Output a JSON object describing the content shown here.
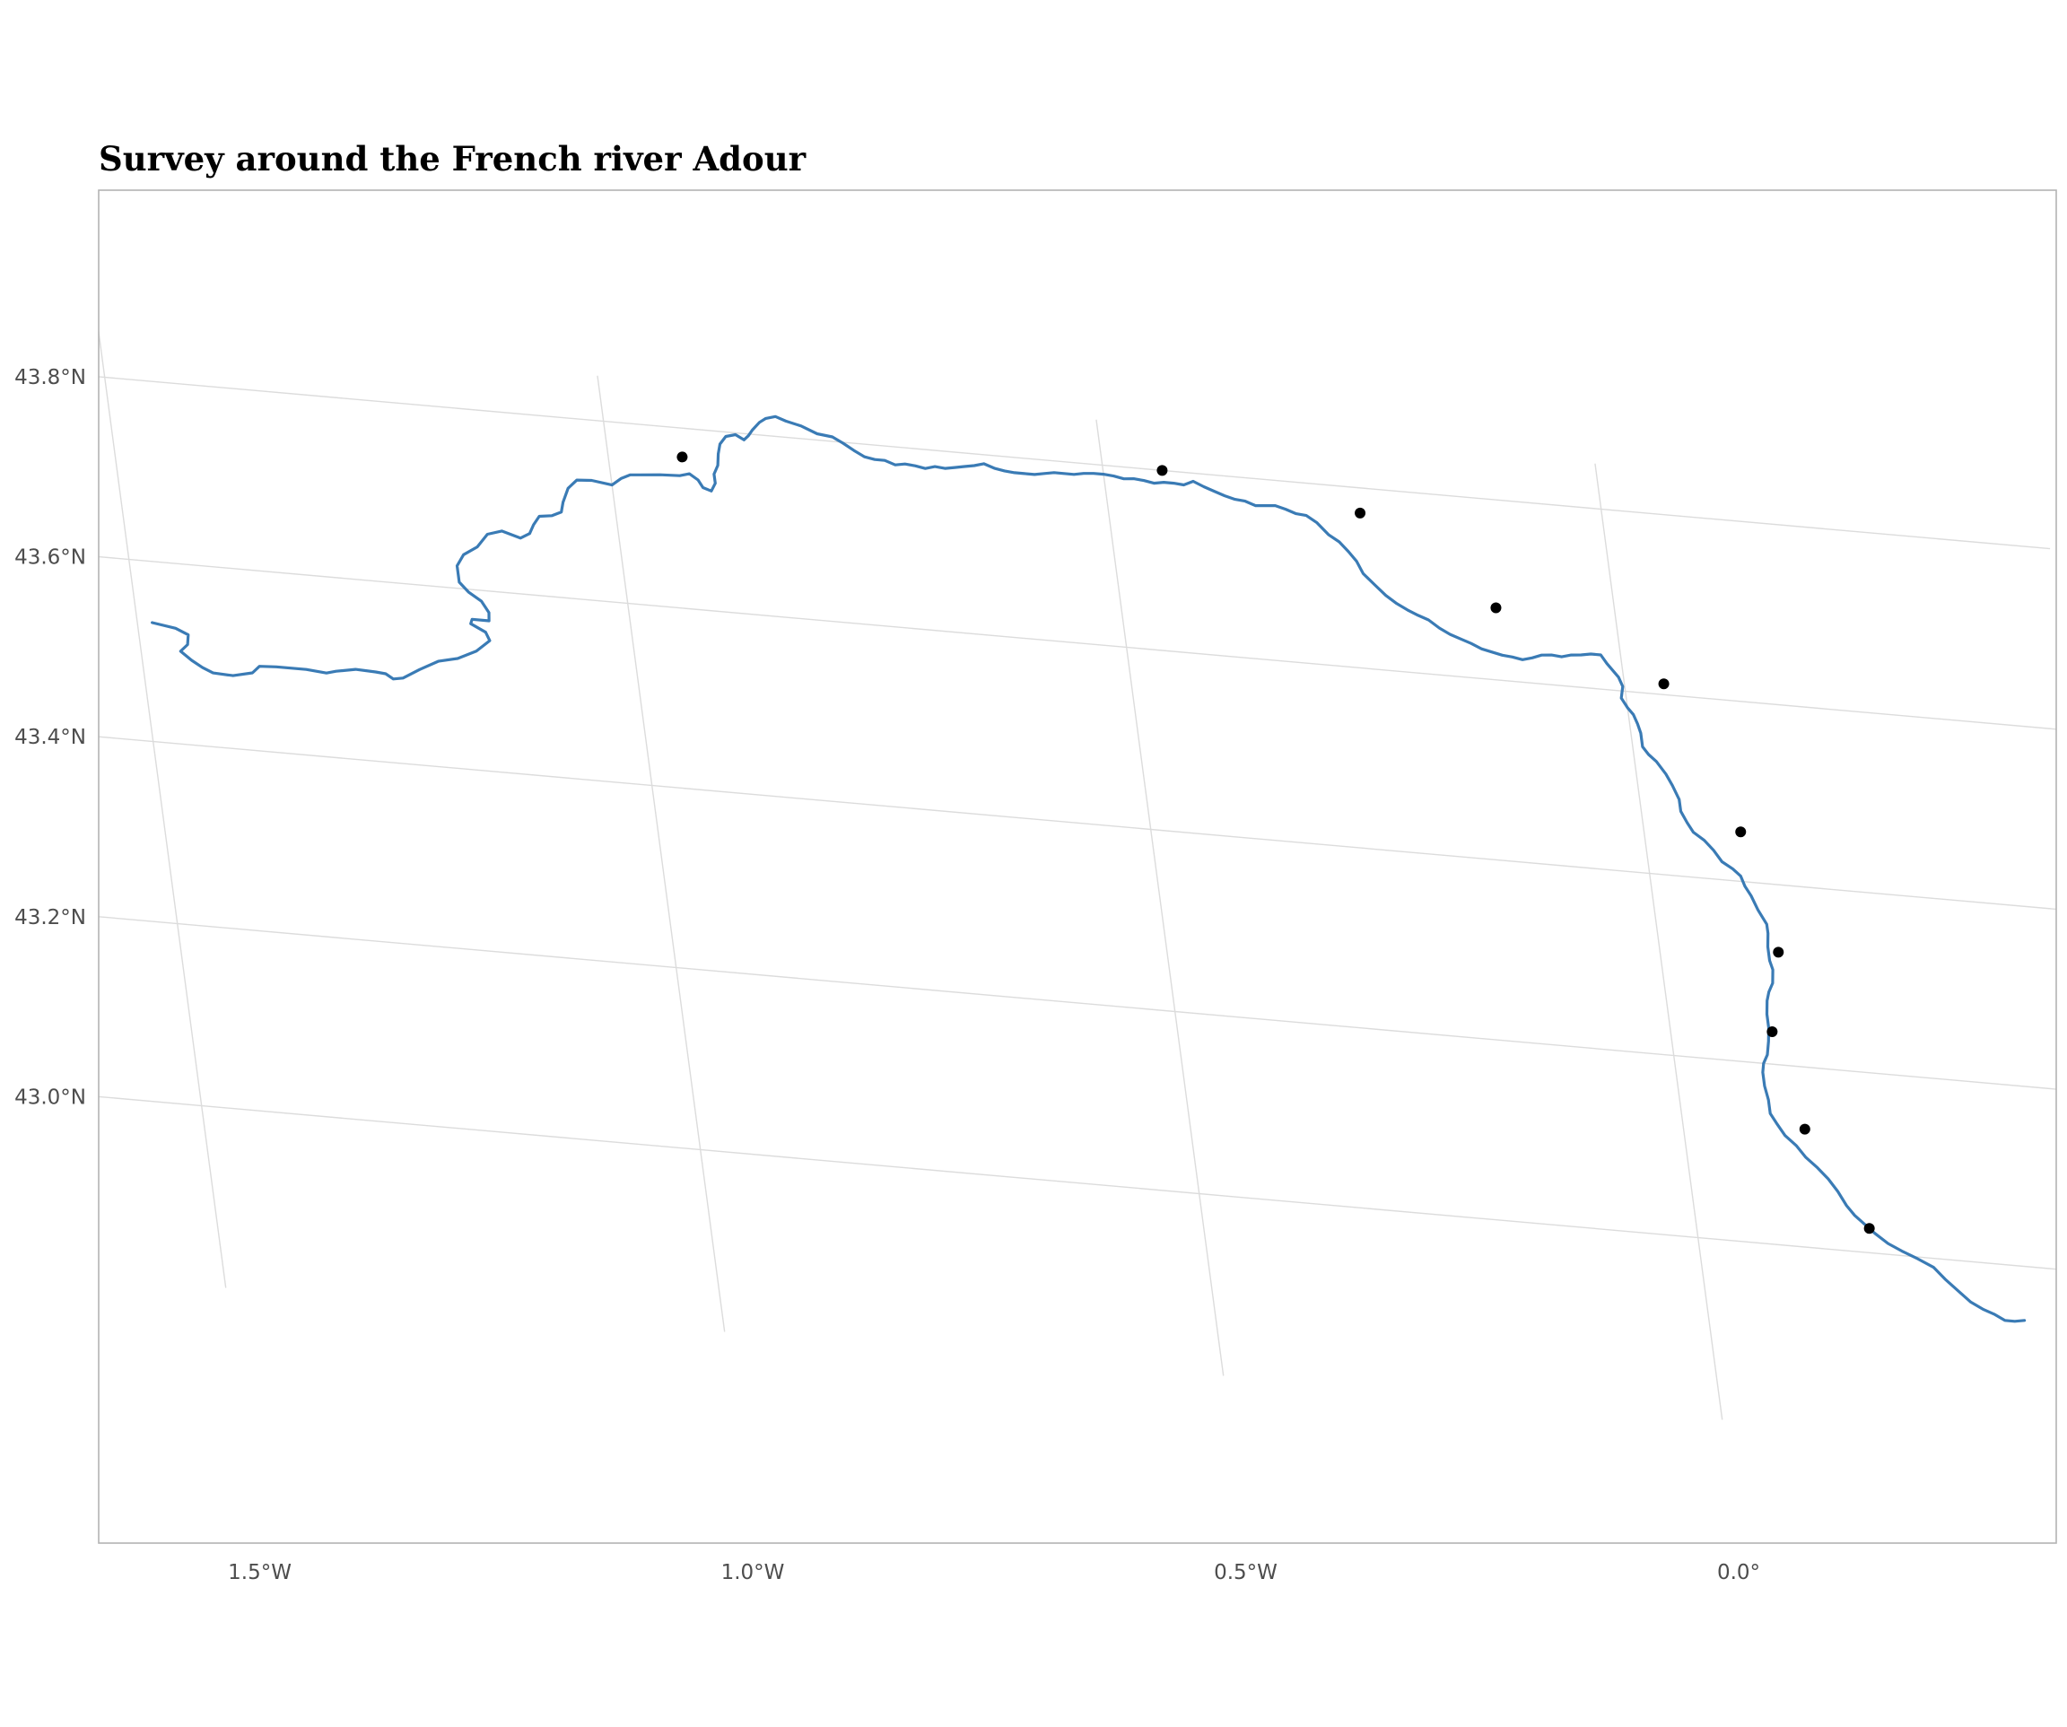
{
  "title": "Survey around the French river Adour",
  "colors": {
    "river": "#3a7bb5",
    "points": "#000000",
    "grid": "#dcdcdc",
    "axis_text": "#4d4d4d"
  },
  "axes": {
    "longitude_ticks": [
      {
        "value": -1.5,
        "label": "1.5°W"
      },
      {
        "value": -1.0,
        "label": "1.0°W"
      },
      {
        "value": -0.5,
        "label": "0.5°W"
      },
      {
        "value": 0.0,
        "label": "0.0°"
      }
    ],
    "latitude_ticks": [
      {
        "value": 43.8,
        "label": "43.8°N"
      },
      {
        "value": 43.6,
        "label": "43.6°N"
      },
      {
        "value": 43.4,
        "label": "43.4°N"
      },
      {
        "value": 43.2,
        "label": "43.2°N"
      },
      {
        "value": 43.0,
        "label": "43.0°N"
      }
    ]
  },
  "river": {
    "name": "Adour",
    "coordinates": [
      [
        -1.485,
        43.532
      ],
      [
        -1.462,
        43.528
      ],
      [
        -1.45,
        43.522
      ],
      [
        -1.452,
        43.511
      ],
      [
        -1.46,
        43.503
      ],
      [
        -1.45,
        43.494
      ],
      [
        -1.44,
        43.487
      ],
      [
        -1.43,
        43.482
      ],
      [
        -1.41,
        43.481
      ],
      [
        -1.39,
        43.486
      ],
      [
        -1.382,
        43.494
      ],
      [
        -1.365,
        43.495
      ],
      [
        -1.335,
        43.495
      ],
      [
        -1.315,
        43.493
      ],
      [
        -1.305,
        43.496
      ],
      [
        -1.285,
        43.5
      ],
      [
        -1.265,
        43.499
      ],
      [
        -1.255,
        43.498
      ],
      [
        -1.248,
        43.493
      ],
      [
        -1.238,
        43.495
      ],
      [
        -1.22,
        43.506
      ],
      [
        -1.2,
        43.517
      ],
      [
        -1.18,
        43.522
      ],
      [
        -1.16,
        43.532
      ],
      [
        -1.145,
        43.545
      ],
      [
        -1.148,
        43.554
      ],
      [
        -1.162,
        43.562
      ],
      [
        -1.16,
        43.567
      ],
      [
        -1.143,
        43.567
      ],
      [
        -1.142,
        43.576
      ],
      [
        -1.148,
        43.588
      ],
      [
        -1.16,
        43.597
      ],
      [
        -1.168,
        43.607
      ],
      [
        -1.168,
        43.625
      ],
      [
        -1.16,
        43.638
      ],
      [
        -1.145,
        43.648
      ],
      [
        -1.133,
        43.663
      ],
      [
        -1.118,
        43.668
      ],
      [
        -1.1,
        43.662
      ],
      [
        -1.09,
        43.668
      ],
      [
        -1.085,
        43.678
      ],
      [
        -1.078,
        43.688
      ],
      [
        -1.065,
        43.69
      ],
      [
        -1.055,
        43.695
      ],
      [
        -1.052,
        43.706
      ],
      [
        -1.045,
        43.722
      ],
      [
        -1.035,
        43.732
      ],
      [
        -1.02,
        43.733
      ],
      [
        -1.0,
        43.73
      ],
      [
        -0.99,
        43.738
      ],
      [
        -0.98,
        43.743
      ],
      [
        -0.97,
        43.744
      ],
      [
        -0.95,
        43.746
      ],
      [
        -0.93,
        43.747
      ],
      [
        -0.92,
        43.75
      ],
      [
        -0.912,
        43.744
      ],
      [
        -0.908,
        43.736
      ],
      [
        -0.9,
        43.733
      ],
      [
        -0.895,
        43.742
      ],
      [
        -0.895,
        43.752
      ],
      [
        -0.89,
        43.762
      ],
      [
        -0.888,
        43.775
      ],
      [
        -0.885,
        43.786
      ],
      [
        -0.878,
        43.795
      ],
      [
        -0.868,
        43.798
      ],
      [
        -0.86,
        43.793
      ],
      [
        -0.855,
        43.798
      ],
      [
        -0.85,
        43.805
      ],
      [
        -0.842,
        43.814
      ],
      [
        -0.835,
        43.819
      ],
      [
        -0.825,
        43.822
      ],
      [
        -0.815,
        43.818
      ],
      [
        -0.8,
        43.814
      ],
      [
        -0.785,
        43.807
      ],
      [
        -0.77,
        43.805
      ],
      [
        -0.76,
        43.799
      ],
      [
        -0.75,
        43.792
      ],
      [
        -0.74,
        43.786
      ],
      [
        -0.73,
        43.784
      ],
      [
        -0.72,
        43.784
      ],
      [
        -0.71,
        43.78
      ],
      [
        -0.7,
        43.782
      ],
      [
        -0.69,
        43.781
      ],
      [
        -0.68,
        43.779
      ],
      [
        -0.67,
        43.782
      ],
      [
        -0.66,
        43.781
      ],
      [
        -0.65,
        43.783
      ],
      [
        -0.64,
        43.785
      ],
      [
        -0.63,
        43.787
      ],
      [
        -0.62,
        43.79
      ],
      [
        -0.61,
        43.786
      ],
      [
        -0.6,
        43.784
      ],
      [
        -0.59,
        43.783
      ],
      [
        -0.58,
        43.783
      ],
      [
        -0.57,
        43.783
      ],
      [
        -0.56,
        43.785
      ],
      [
        -0.55,
        43.787
      ],
      [
        -0.54,
        43.787
      ],
      [
        -0.53,
        43.787
      ],
      [
        -0.52,
        43.789
      ],
      [
        -0.51,
        43.79
      ],
      [
        -0.5,
        43.79
      ],
      [
        -0.49,
        43.789
      ],
      [
        -0.48,
        43.787
      ],
      [
        -0.47,
        43.788
      ],
      [
        -0.46,
        43.787
      ],
      [
        -0.45,
        43.785
      ],
      [
        -0.44,
        43.787
      ],
      [
        -0.43,
        43.787
      ],
      [
        -0.42,
        43.786
      ],
      [
        -0.41,
        43.791
      ],
      [
        -0.4,
        43.786
      ],
      [
        -0.39,
        43.782
      ],
      [
        -0.38,
        43.778
      ],
      [
        -0.37,
        43.775
      ],
      [
        -0.36,
        43.774
      ],
      [
        -0.35,
        43.77
      ],
      [
        -0.34,
        43.771
      ],
      [
        -0.33,
        43.772
      ],
      [
        -0.32,
        43.769
      ],
      [
        -0.31,
        43.765
      ],
      [
        -0.3,
        43.764
      ],
      [
        -0.29,
        43.757
      ],
      [
        -0.28,
        43.745
      ],
      [
        -0.27,
        43.738
      ],
      [
        -0.262,
        43.728
      ],
      [
        -0.255,
        43.718
      ],
      [
        -0.25,
        43.705
      ],
      [
        -0.24,
        43.694
      ],
      [
        -0.23,
        43.683
      ],
      [
        -0.22,
        43.675
      ],
      [
        -0.21,
        43.669
      ],
      [
        -0.2,
        43.664
      ],
      [
        -0.19,
        43.66
      ],
      [
        -0.18,
        43.652
      ],
      [
        -0.17,
        43.646
      ],
      [
        -0.16,
        43.642
      ],
      [
        -0.15,
        43.638
      ],
      [
        -0.14,
        43.633
      ],
      [
        -0.12,
        43.628
      ],
      [
        -0.11,
        43.627
      ],
      [
        -0.1,
        43.625
      ],
      [
        -0.09,
        43.628
      ],
      [
        -0.08,
        43.632
      ],
      [
        -0.07,
        43.633
      ],
      [
        -0.06,
        43.632
      ],
      [
        -0.05,
        43.635
      ],
      [
        -0.04,
        43.636
      ],
      [
        -0.03,
        43.638
      ],
      [
        -0.02,
        43.638
      ],
      [
        -0.015,
        43.629
      ],
      [
        -0.01,
        43.622
      ],
      [
        -0.005,
        43.615
      ],
      [
        -0.002,
        43.605
      ],
      [
        -0.005,
        43.592
      ],
      [
        0.0,
        43.582
      ],
      [
        0.005,
        43.575
      ],
      [
        0.008,
        43.565
      ],
      [
        0.01,
        43.555
      ],
      [
        0.01,
        43.54
      ],
      [
        0.015,
        43.532
      ],
      [
        0.022,
        43.525
      ],
      [
        0.03,
        43.512
      ],
      [
        0.035,
        43.5
      ],
      [
        0.04,
        43.485
      ],
      [
        0.04,
        43.472
      ],
      [
        0.045,
        43.46
      ],
      [
        0.05,
        43.45
      ],
      [
        0.06,
        43.442
      ],
      [
        0.068,
        43.432
      ],
      [
        0.075,
        43.42
      ],
      [
        0.085,
        43.413
      ],
      [
        0.092,
        43.406
      ],
      [
        0.095,
        43.395
      ],
      [
        0.1,
        43.385
      ],
      [
        0.105,
        43.37
      ],
      [
        0.112,
        43.355
      ],
      [
        0.112,
        43.345
      ],
      [
        0.11,
        43.33
      ],
      [
        0.11,
        43.315
      ],
      [
        0.112,
        43.305
      ],
      [
        0.11,
        43.29
      ],
      [
        0.105,
        43.28
      ],
      [
        0.102,
        43.27
      ],
      [
        0.1,
        43.255
      ],
      [
        0.1,
        43.24
      ],
      [
        0.098,
        43.225
      ],
      [
        0.095,
        43.21
      ],
      [
        0.09,
        43.2
      ],
      [
        0.088,
        43.19
      ],
      [
        0.088,
        43.175
      ],
      [
        0.09,
        43.16
      ],
      [
        0.09,
        43.145
      ],
      [
        0.095,
        43.135
      ],
      [
        0.102,
        43.122
      ],
      [
        0.112,
        43.112
      ],
      [
        0.12,
        43.1
      ],
      [
        0.13,
        43.09
      ],
      [
        0.14,
        43.078
      ],
      [
        0.148,
        43.065
      ],
      [
        0.155,
        43.05
      ],
      [
        0.162,
        43.04
      ],
      [
        0.17,
        43.032
      ],
      [
        0.18,
        43.022
      ],
      [
        0.192,
        43.012
      ],
      [
        0.205,
        43.005
      ],
      [
        0.22,
        42.998
      ],
      [
        0.235,
        42.99
      ],
      [
        0.245,
        42.978
      ],
      [
        0.258,
        42.965
      ],
      [
        0.268,
        42.955
      ],
      [
        0.28,
        42.948
      ],
      [
        0.29,
        42.944
      ],
      [
        0.3,
        42.938
      ],
      [
        0.31,
        42.938
      ],
      [
        0.32,
        42.94
      ]
    ]
  },
  "survey_points": [
    {
      "lon": -0.925,
      "lat": 43.768
    },
    {
      "lon": -0.44,
      "lat": 43.8
    },
    {
      "lon": -0.245,
      "lat": 43.772
    },
    {
      "lon": -0.12,
      "lat": 43.68
    },
    {
      "lon": 0.04,
      "lat": 43.612
    },
    {
      "lon": 0.098,
      "lat": 43.455
    },
    {
      "lon": 0.12,
      "lat": 43.325
    },
    {
      "lon": 0.103,
      "lat": 43.236
    },
    {
      "lon": 0.123,
      "lat": 43.131
    },
    {
      "lon": 0.175,
      "lat": 43.027
    }
  ]
}
